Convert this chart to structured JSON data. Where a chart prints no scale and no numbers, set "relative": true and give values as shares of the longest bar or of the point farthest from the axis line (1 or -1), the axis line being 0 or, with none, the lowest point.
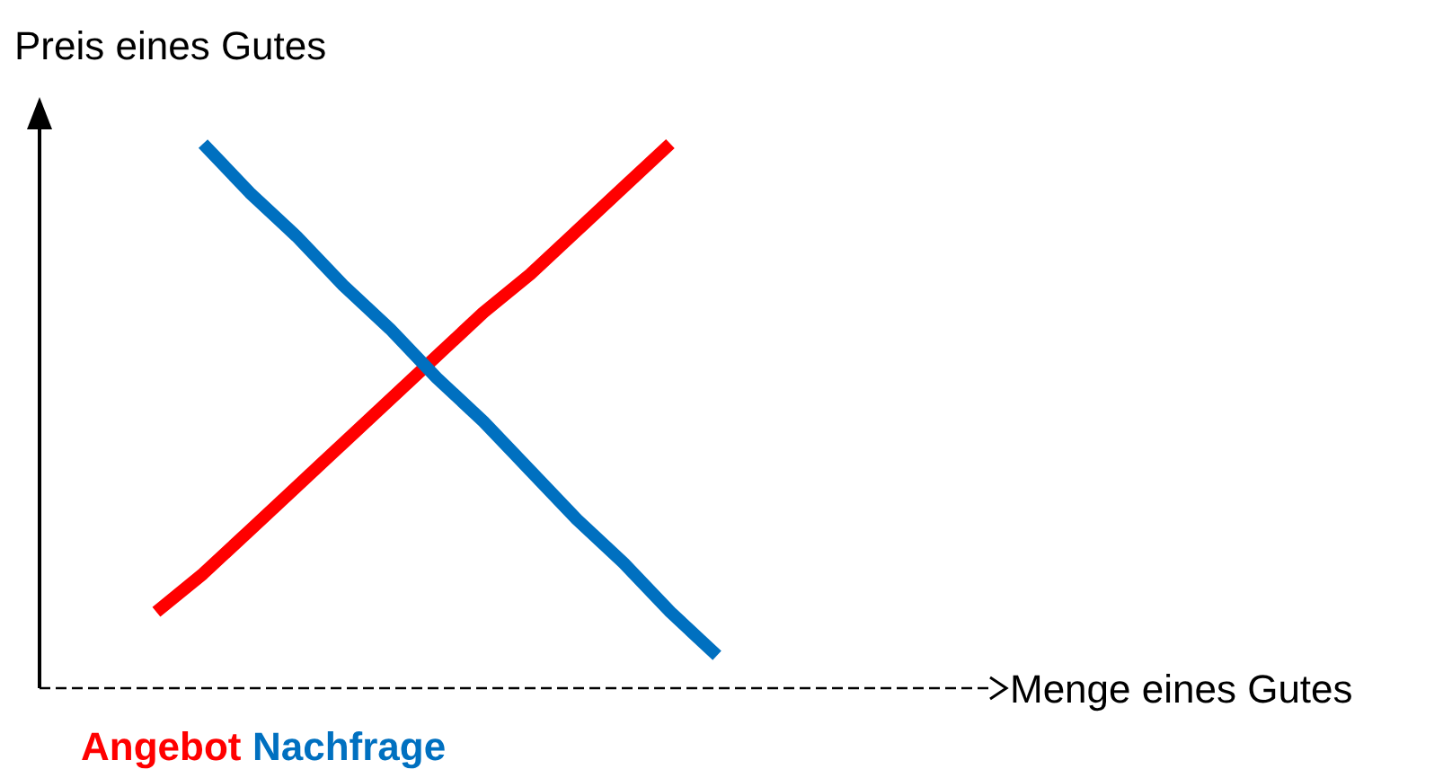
{
  "chart_data": {
    "type": "line",
    "relative": true,
    "ylabel": "Preis eines Gutes",
    "annotations": [
      "Menge eines Gutes"
    ],
    "marker": "none",
    "line_style": "solid",
    "categories": [
      null,
      null,
      null,
      null,
      null,
      null,
      null,
      null,
      null,
      null,
      null,
      null,
      null
    ],
    "series": [
      {
        "name": "Angebot",
        "color": "#ff0000",
        "values": [
          0.14,
          0.21,
          0.29,
          0.37,
          0.45,
          0.53,
          0.61,
          0.69,
          0.76,
          0.84,
          0.92,
          1.0,
          null
        ]
      },
      {
        "name": "Nachfrage",
        "color": "#0070c0",
        "values": [
          null,
          1.0,
          0.91,
          0.83,
          0.74,
          0.66,
          0.57,
          0.49,
          0.4,
          0.31,
          0.23,
          0.14,
          0.06
        ]
      }
    ]
  }
}
